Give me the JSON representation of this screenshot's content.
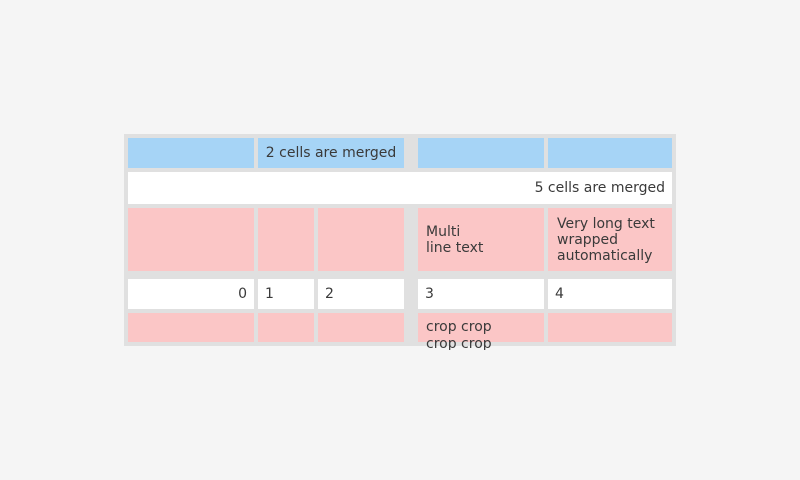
{
  "page": {
    "background": "#f5f5f5"
  },
  "table": {
    "colors": {
      "blue_cell": "#a6d4f6",
      "pink_cell": "#fbc6c6",
      "white_cell": "#ffffff",
      "gap": "#e0e0e0",
      "text": "#3a3a3a"
    },
    "row1": {
      "merged_cell_label": "2 cells are merged"
    },
    "row2": {
      "merged_cell_label": "5 cells are merged"
    },
    "row3": {
      "multiline_cell": "Multi\nline text",
      "wrapped_cell": "Very long text wrapped automatically"
    },
    "row4": {
      "cells": [
        "0",
        "1",
        "2",
        "3",
        "4"
      ]
    },
    "row5": {
      "cropped_cell": "crop crop\ncrop crop"
    }
  }
}
